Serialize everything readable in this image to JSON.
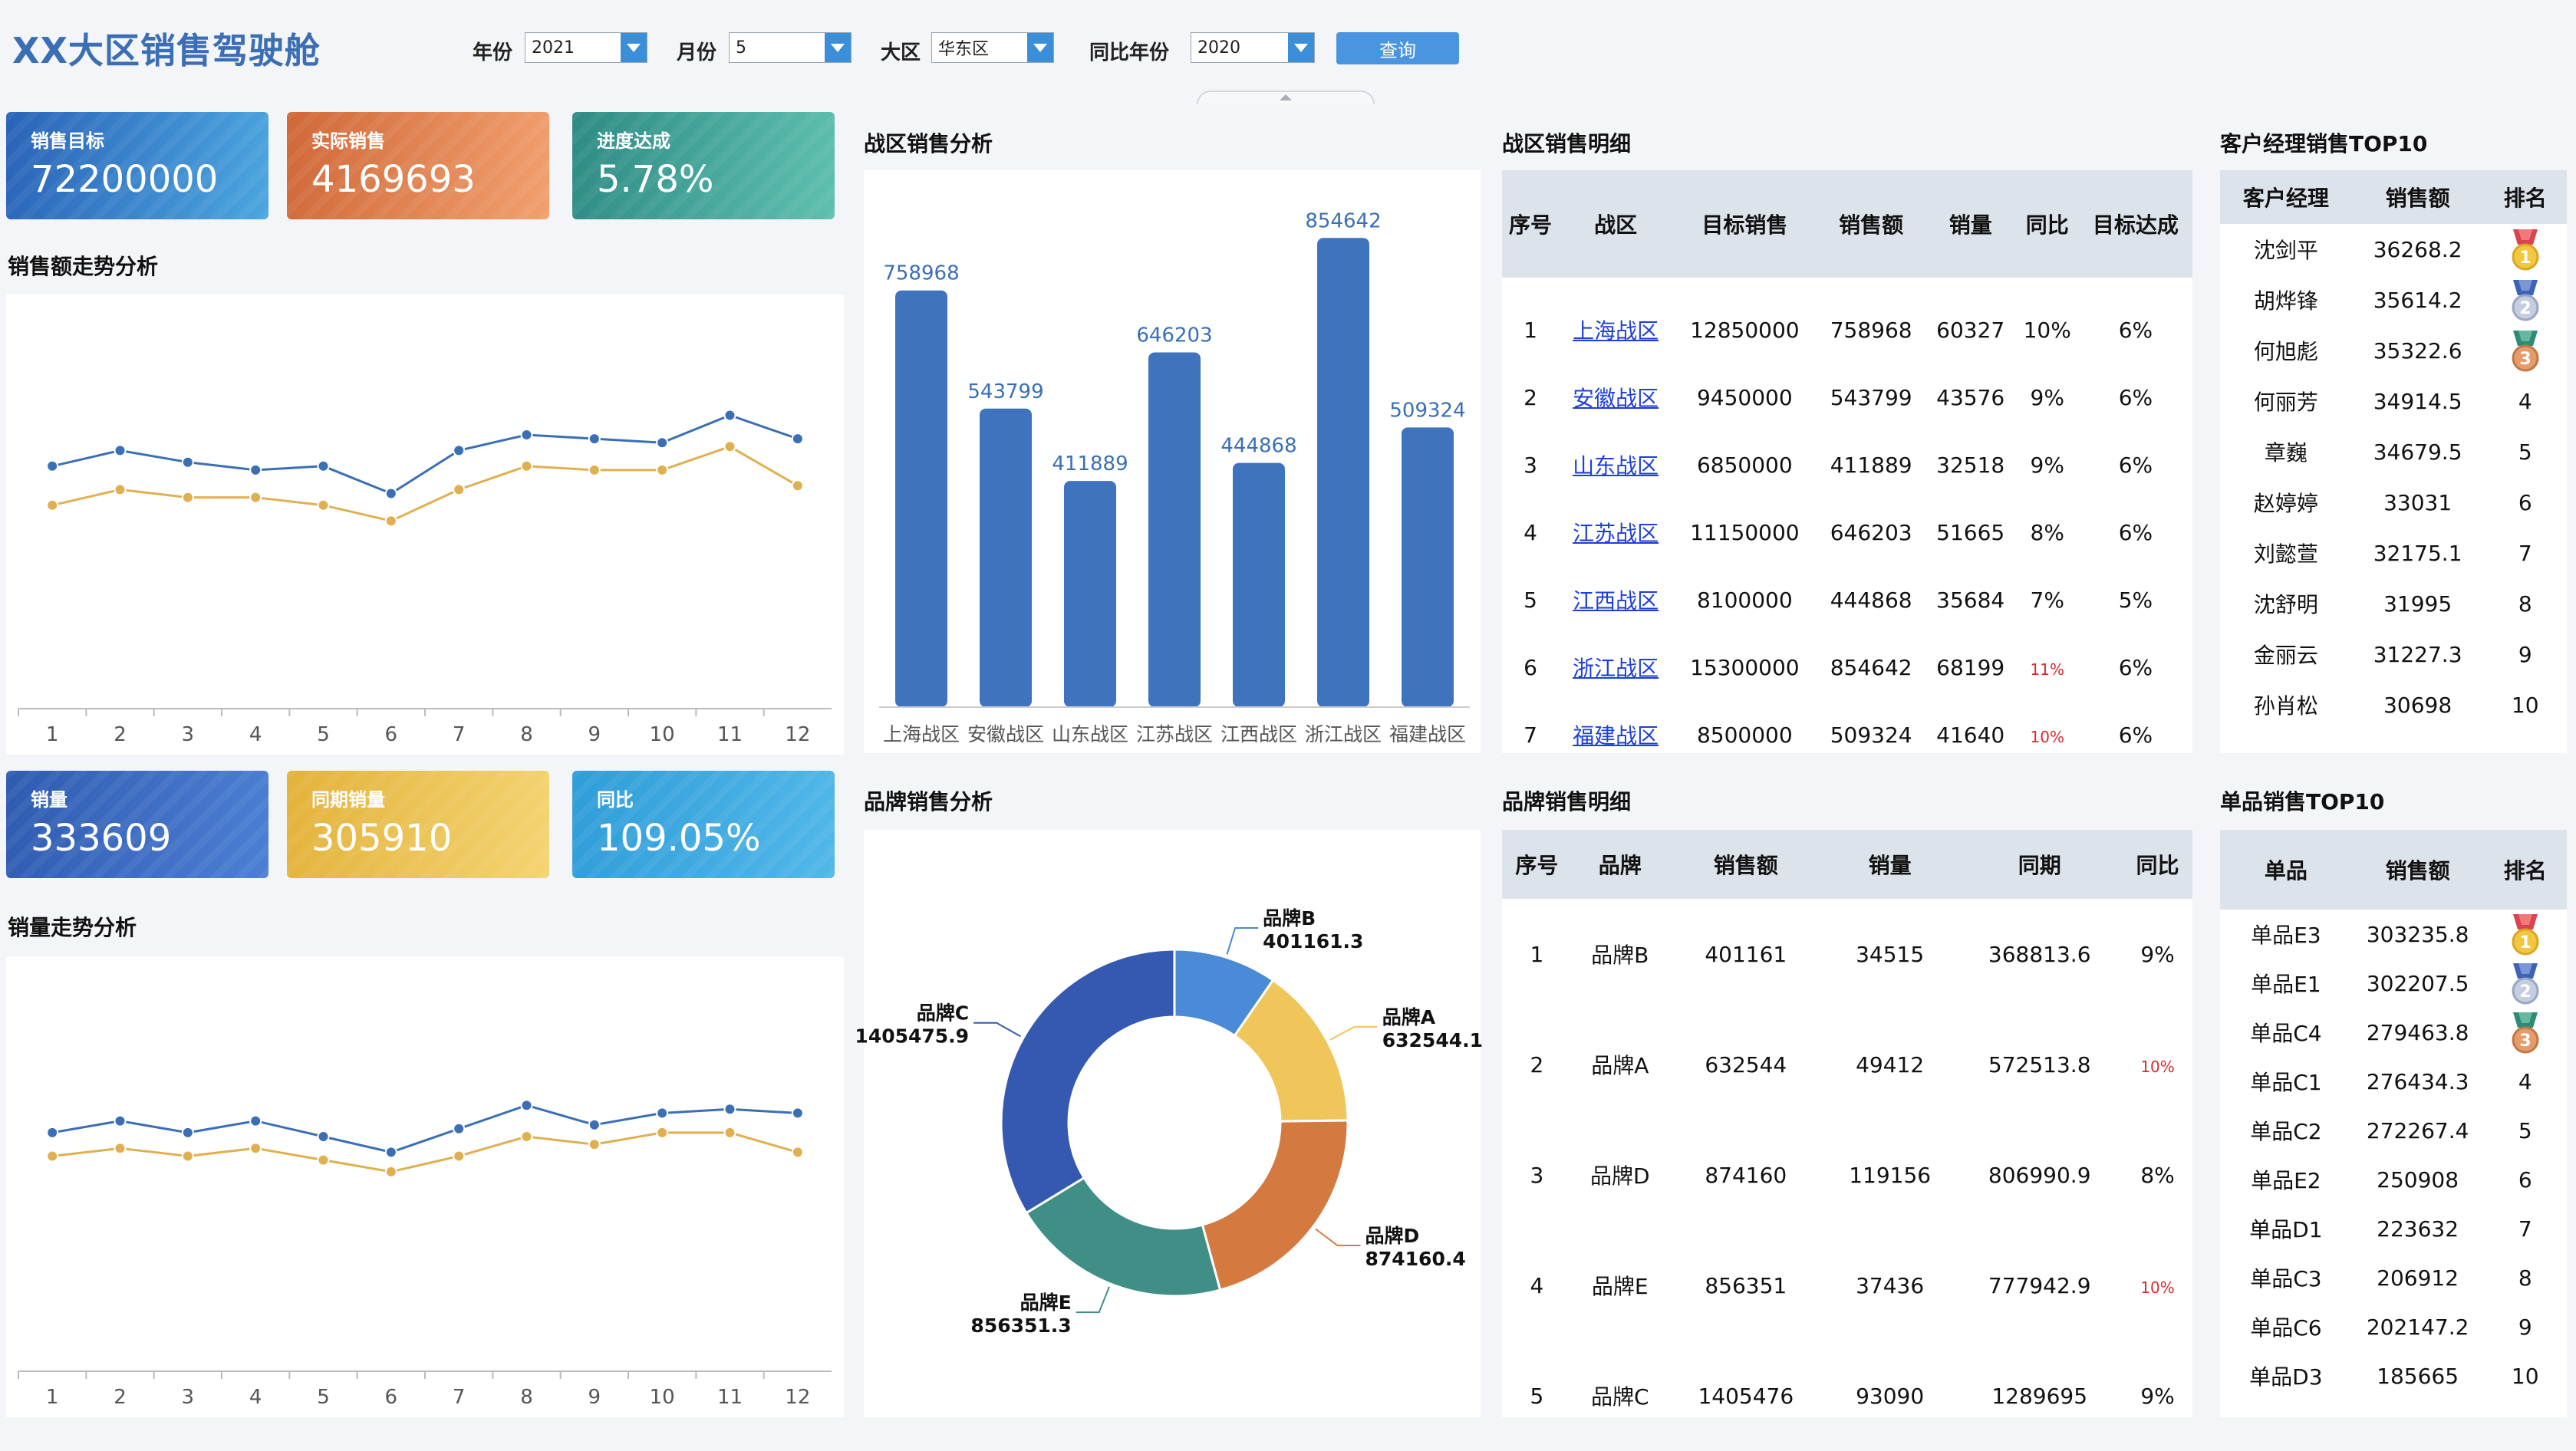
{
  "header": {
    "title": "XX大区销售驾驶舱",
    "filters": {
      "year_label": "年份",
      "year_value": "2021",
      "month_label": "月份",
      "month_value": "5",
      "region_label": "大区",
      "region_value": "华东区",
      "yoy_label": "同比年份",
      "yoy_value": "2020"
    },
    "query_label": "查询"
  },
  "kpis_top": [
    {
      "label": "销售目标",
      "value": "72200000"
    },
    {
      "label": "实际销售",
      "value": "4169693"
    },
    {
      "label": "进度达成",
      "value": "5.78%"
    }
  ],
  "kpis_bottom": [
    {
      "label": "销量",
      "value": "333609"
    },
    {
      "label": "同期销量",
      "value": "305910"
    },
    {
      "label": "同比",
      "value": "109.05%"
    }
  ],
  "sales_trend": {
    "title": "销售额走势分析",
    "chart_data": {
      "type": "line",
      "x": [
        "1",
        "2",
        "3",
        "4",
        "5",
        "6",
        "7",
        "8",
        "9",
        "10",
        "11",
        "12"
      ],
      "series": [
        {
          "values": [
            62,
            66,
            63,
            61,
            62,
            55,
            66,
            70,
            69,
            68,
            75,
            69
          ],
          "color": "#3a6fb5"
        },
        {
          "values": [
            52,
            56,
            54,
            54,
            52,
            48,
            56,
            62,
            61,
            61,
            67,
            57
          ],
          "color": "#e0b050"
        }
      ],
      "ylim": [
        0,
        100
      ]
    }
  },
  "volume_trend": {
    "title": "销量走势分析",
    "chart_data": {
      "type": "line",
      "x": [
        "1",
        "2",
        "3",
        "4",
        "5",
        "6",
        "7",
        "8",
        "9",
        "10",
        "11",
        "12"
      ],
      "series": [
        {
          "values": [
            61,
            64,
            61,
            64,
            60,
            56,
            62,
            68,
            63,
            66,
            67,
            66
          ],
          "color": "#3a6fb5"
        },
        {
          "values": [
            55,
            57,
            55,
            57,
            54,
            51,
            55,
            60,
            58,
            61,
            61,
            56
          ],
          "color": "#e0b050"
        }
      ],
      "ylim": [
        0,
        100
      ]
    }
  },
  "zone_chart": {
    "title": "战区销售分析",
    "chart_data": {
      "type": "bar",
      "categories": [
        "上海战区",
        "安徽战区",
        "山东战区",
        "江苏战区",
        "江西战区",
        "浙江战区",
        "福建战区"
      ],
      "values": [
        758968,
        543799,
        411889,
        646203,
        444868,
        854642,
        509324
      ],
      "ylim": [
        0,
        950000
      ],
      "color": "#3f73bd"
    }
  },
  "zone_table": {
    "title": "战区销售明细",
    "headers": [
      "序号",
      "战区",
      "目标销售",
      "销售额",
      "销量",
      "同比",
      "目标达成"
    ],
    "rows": [
      [
        "1",
        "上海战区",
        "12850000",
        "758968",
        "60327",
        "10%",
        "6%"
      ],
      [
        "2",
        "安徽战区",
        "9450000",
        "543799",
        "43576",
        "9%",
        "6%"
      ],
      [
        "3",
        "山东战区",
        "6850000",
        "411889",
        "32518",
        "9%",
        "6%"
      ],
      [
        "4",
        "江苏战区",
        "11150000",
        "646203",
        "51665",
        "8%",
        "6%"
      ],
      [
        "5",
        "江西战区",
        "8100000",
        "444868",
        "35684",
        "7%",
        "5%"
      ],
      [
        "6",
        "浙江战区",
        "15300000",
        "854642",
        "68199",
        "11%",
        "6%"
      ],
      [
        "7",
        "福建战区",
        "8500000",
        "509324",
        "41640",
        "10%",
        "6%"
      ]
    ],
    "red_rows": [
      5,
      6
    ]
  },
  "manager_top10": {
    "title": "客户经理销售TOP10",
    "headers": [
      "客户经理",
      "销售额",
      "排名"
    ],
    "rows": [
      [
        "沈剑平",
        "36268.2",
        "1"
      ],
      [
        "胡烨锋",
        "35614.2",
        "2"
      ],
      [
        "何旭彪",
        "35322.6",
        "3"
      ],
      [
        "何丽芳",
        "34914.5",
        "4"
      ],
      [
        "章巍",
        "34679.5",
        "5"
      ],
      [
        "赵婷婷",
        "33031",
        "6"
      ],
      [
        "刘懿萱",
        "32175.1",
        "7"
      ],
      [
        "沈舒明",
        "31995",
        "8"
      ],
      [
        "金丽云",
        "31227.3",
        "9"
      ],
      [
        "孙肖松",
        "30698",
        "10"
      ]
    ]
  },
  "brand_chart": {
    "title": "品牌销售分析",
    "chart_data": {
      "type": "pie",
      "slices": [
        {
          "name": "品牌B",
          "value": 401161.3,
          "color": "#4a8ad6"
        },
        {
          "name": "品牌A",
          "value": 632544.1,
          "color": "#f0c65a"
        },
        {
          "name": "品牌D",
          "value": 874160.4,
          "color": "#d47a40"
        },
        {
          "name": "品牌E",
          "value": 856351.3,
          "color": "#3f8f86"
        },
        {
          "name": "品牌C",
          "value": 1405475.9,
          "color": "#3558b0"
        }
      ]
    }
  },
  "brand_table": {
    "title": "品牌销售明细",
    "headers": [
      "序号",
      "品牌",
      "销售额",
      "销量",
      "同期",
      "同比"
    ],
    "rows": [
      [
        "1",
        "品牌B",
        "401161",
        "34515",
        "368813.6",
        "9%"
      ],
      [
        "2",
        "品牌A",
        "632544",
        "49412",
        "572513.8",
        "10%"
      ],
      [
        "3",
        "品牌D",
        "874160",
        "119156",
        "806990.9",
        "8%"
      ],
      [
        "4",
        "品牌E",
        "856351",
        "37436",
        "777942.9",
        "10%"
      ],
      [
        "5",
        "品牌C",
        "1405476",
        "93090",
        "1289695",
        "9%"
      ]
    ],
    "red_rows": [
      1,
      3
    ]
  },
  "product_top10": {
    "title": "单品销售TOP10",
    "headers": [
      "单品",
      "销售额",
      "排名"
    ],
    "rows": [
      [
        "单品E3",
        "303235.8",
        "1"
      ],
      [
        "单品E1",
        "302207.5",
        "2"
      ],
      [
        "单品C4",
        "279463.8",
        "3"
      ],
      [
        "单品C1",
        "276434.3",
        "4"
      ],
      [
        "单品C2",
        "272267.4",
        "5"
      ],
      [
        "单品E2",
        "250908",
        "6"
      ],
      [
        "单品D1",
        "223632",
        "7"
      ],
      [
        "单品C3",
        "206912",
        "8"
      ],
      [
        "单品C6",
        "202147.2",
        "9"
      ],
      [
        "单品D3",
        "185665",
        "10"
      ]
    ]
  }
}
